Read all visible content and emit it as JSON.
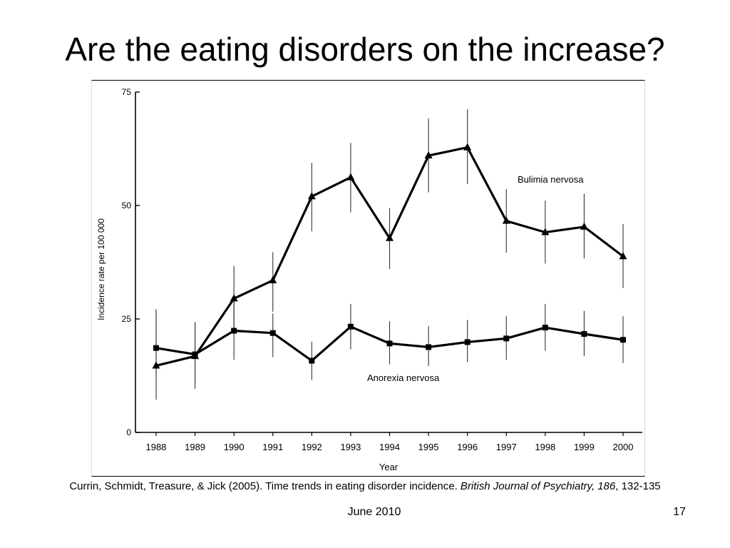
{
  "slide": {
    "title": "Are the eating disorders on the increase?",
    "citation": {
      "plain": "Currin, Schmidt, Treasure, & Jick (2005). Time trends in eating disorder incidence. ",
      "journal": "British Journal of Psychiatry, 186",
      "pages": ", 132-135"
    },
    "footer_date": "June 2010",
    "page_number": "17"
  },
  "chart_data": {
    "type": "line",
    "title": "",
    "xlabel": "Year",
    "ylabel": "Incidence rate per 100 000",
    "x": [
      "1988",
      "1989",
      "1990",
      "1991",
      "1992",
      "1993",
      "1994",
      "1995",
      "1996",
      "1997",
      "1998",
      "1999",
      "2000"
    ],
    "ylim": [
      0,
      75
    ],
    "yticks": [
      0,
      25,
      50,
      75
    ],
    "grid": false,
    "series": [
      {
        "name": "Bulimia nervosa",
        "marker": "triangle",
        "values": [
          14.7,
          16.8,
          29.5,
          33.5,
          52.0,
          56.2,
          42.8,
          61.0,
          62.8,
          46.6,
          44.1,
          45.3,
          38.8
        ],
        "err_low": [
          7.2,
          9.6,
          22.2,
          26.6,
          44.3,
          48.5,
          36.0,
          52.9,
          54.7,
          39.6,
          37.2,
          38.3,
          31.8
        ],
        "err_high": [
          27.1,
          24.3,
          36.7,
          39.7,
          59.4,
          63.8,
          49.4,
          69.2,
          71.2,
          53.6,
          51.1,
          52.6,
          45.9
        ]
      },
      {
        "name": "Anorexia nervosa",
        "marker": "square",
        "values": [
          18.6,
          17.2,
          22.4,
          21.9,
          15.8,
          23.3,
          19.6,
          18.8,
          19.9,
          20.7,
          23.1,
          21.7,
          20.4
        ],
        "err_low": [
          12.2,
          10.8,
          16.0,
          16.6,
          11.6,
          18.3,
          15.0,
          14.6,
          15.5,
          16.0,
          18.0,
          16.8,
          15.3
        ],
        "err_high": [
          27.1,
          24.3,
          29.1,
          26.2,
          20.0,
          28.3,
          24.5,
          23.4,
          24.8,
          25.6,
          28.3,
          26.8,
          25.6
        ]
      }
    ]
  }
}
